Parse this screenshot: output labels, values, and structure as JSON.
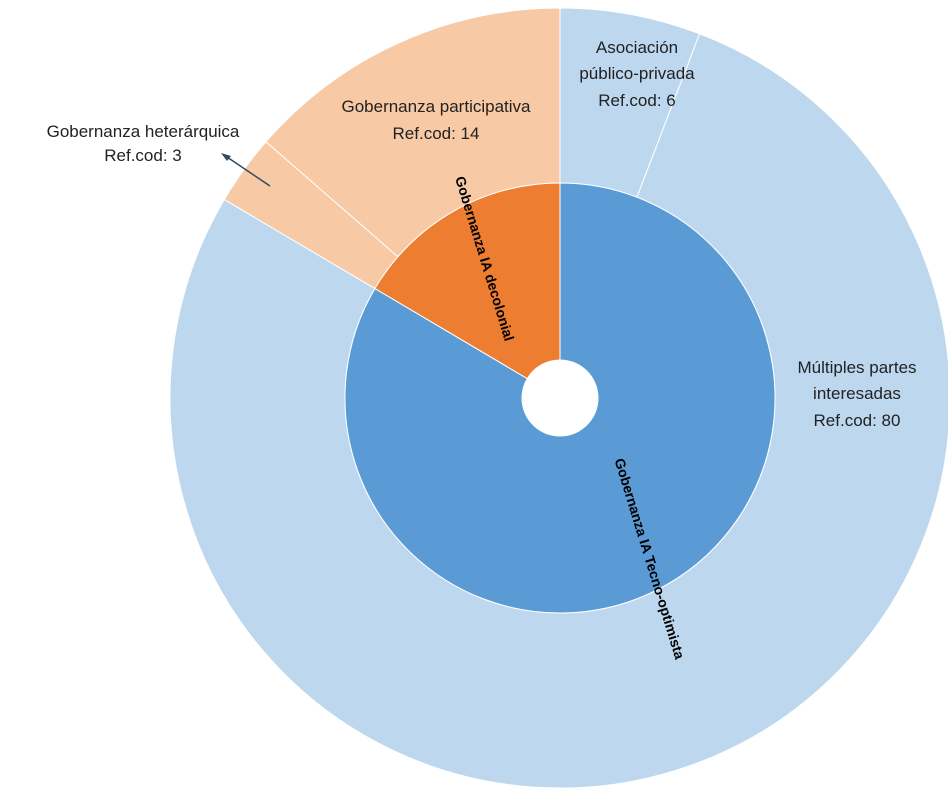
{
  "chart_data": {
    "type": "sunburst",
    "title": "",
    "unit_label": "Ref.cod",
    "colors": {
      "decolonial_inner": "#ED7D31",
      "decolonial_outer": "#F7C9A5",
      "tecno_inner": "#5B9BD5",
      "tecno_outer": "#BDD7EE",
      "hole": "#FFFFFF"
    },
    "inner": [
      {
        "name": "Gobernanza IA decolonial",
        "value": 17,
        "color_key": "decolonial_inner"
      },
      {
        "name": "Gobernanza IA Tecno-optimista",
        "value": 86,
        "color_key": "tecno_inner"
      }
    ],
    "outer": [
      {
        "parent": "Gobernanza IA decolonial",
        "name": "Gobernanza participativa",
        "value": 14,
        "value_text": "Ref.cod: 14",
        "color_key": "decolonial_outer"
      },
      {
        "parent": "Gobernanza IA decolonial",
        "name": "Gobernanza heterárquica",
        "value": 3,
        "value_text": "Ref.cod: 3",
        "color_key": "decolonial_outer"
      },
      {
        "parent": "Gobernanza IA Tecno-optimista",
        "name": "Múltiples partes interesadas",
        "name_lines": [
          "Múltiples partes",
          "interesadas"
        ],
        "value": 80,
        "value_text": "Ref.cod: 80",
        "color_key": "tecno_outer"
      },
      {
        "parent": "Gobernanza IA Tecno-optimista",
        "name": "Asociación público-privada",
        "name_lines": [
          "Asociación",
          "público-privada"
        ],
        "value": 6,
        "value_text": "Ref.cod: 6",
        "color_key": "tecno_outer"
      }
    ]
  }
}
